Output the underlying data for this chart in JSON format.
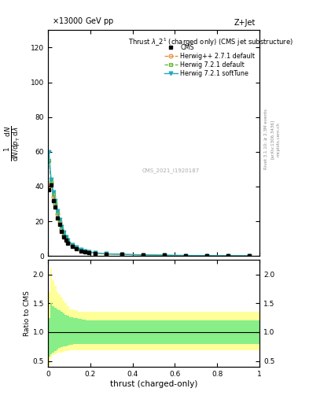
{
  "title_top_left": "13000 GeV pp",
  "title_top_right": "Z+Jet",
  "plot_title_line1": "Thrust λ_2¹ (charged only) (CMS jet substructure)",
  "cms_label": "CMS_2021_I1920187",
  "rivet_label": "Rivet 3.1.10; ≥ 2.3M events",
  "arxiv_label": "[arXiv:1306.3436]",
  "xlabel": "thrust (charged-only)",
  "ylim_main": [
    0,
    130
  ],
  "ylim_ratio": [
    0.4,
    2.25
  ],
  "yticks_main": [
    0,
    20,
    40,
    60,
    80,
    100,
    120
  ],
  "yticks_ratio": [
    0.5,
    1.0,
    1.5,
    2.0
  ],
  "xlim": [
    0,
    1
  ],
  "x_cms": [
    0.005,
    0.015,
    0.025,
    0.035,
    0.045,
    0.055,
    0.065,
    0.075,
    0.085,
    0.095,
    0.115,
    0.135,
    0.155,
    0.175,
    0.195,
    0.225,
    0.275,
    0.35,
    0.45,
    0.55,
    0.65,
    0.75,
    0.85,
    0.95
  ],
  "y_cms": [
    38.0,
    41.0,
    32.0,
    28.0,
    22.0,
    18.0,
    14.0,
    11.0,
    9.0,
    7.5,
    5.5,
    4.0,
    3.0,
    2.5,
    2.0,
    1.5,
    1.0,
    0.8,
    0.5,
    0.3,
    0.2,
    0.15,
    0.1,
    0.05
  ],
  "y_hw271_default": [
    40.0,
    42.0,
    34.0,
    30.0,
    24.0,
    19.5,
    15.5,
    12.0,
    10.0,
    8.0,
    6.0,
    4.5,
    3.3,
    2.7,
    2.1,
    1.6,
    1.1,
    0.85,
    0.55,
    0.35,
    0.22,
    0.16,
    0.11,
    0.06
  ],
  "y_hw721_default": [
    55.0,
    43.0,
    36.0,
    31.0,
    25.0,
    20.0,
    16.0,
    13.0,
    10.5,
    8.5,
    6.2,
    4.7,
    3.5,
    2.8,
    2.2,
    1.7,
    1.15,
    0.9,
    0.58,
    0.38,
    0.24,
    0.17,
    0.12,
    0.07
  ],
  "y_hw721_softtune": [
    60.0,
    44.0,
    37.0,
    32.0,
    26.0,
    21.0,
    17.0,
    13.5,
    11.0,
    9.0,
    6.5,
    5.0,
    3.7,
    3.0,
    2.3,
    1.75,
    1.2,
    0.95,
    0.6,
    0.4,
    0.25,
    0.18,
    0.13,
    0.08
  ],
  "ratio_yellow_upper": [
    1.7,
    2.1,
    1.9,
    1.8,
    1.7,
    1.65,
    1.6,
    1.55,
    1.5,
    1.45,
    1.4,
    1.38,
    1.35,
    1.35,
    1.35,
    1.35,
    1.35,
    1.35,
    1.35,
    1.35,
    1.35,
    1.35,
    1.35,
    1.35
  ],
  "ratio_yellow_lower": [
    0.42,
    0.55,
    0.6,
    0.62,
    0.63,
    0.64,
    0.65,
    0.66,
    0.67,
    0.67,
    0.68,
    0.68,
    0.68,
    0.68,
    0.68,
    0.68,
    0.68,
    0.68,
    0.68,
    0.68,
    0.68,
    0.68,
    0.68,
    0.68
  ],
  "ratio_green_upper": [
    1.25,
    1.5,
    1.45,
    1.42,
    1.4,
    1.38,
    1.35,
    1.32,
    1.3,
    1.28,
    1.26,
    1.25,
    1.23,
    1.22,
    1.21,
    1.2,
    1.2,
    1.2,
    1.2,
    1.2,
    1.2,
    1.2,
    1.2,
    1.2
  ],
  "ratio_green_lower": [
    0.58,
    0.62,
    0.65,
    0.67,
    0.7,
    0.72,
    0.74,
    0.75,
    0.76,
    0.77,
    0.78,
    0.79,
    0.8,
    0.8,
    0.8,
    0.8,
    0.8,
    0.8,
    0.8,
    0.8,
    0.8,
    0.8,
    0.8,
    0.8
  ],
  "color_cms": "#000000",
  "color_hw271": "#e8882a",
  "color_hw721_default": "#5db832",
  "color_hw721_softtune": "#22aabb",
  "color_yellow": "#ffff99",
  "color_green": "#88ee88",
  "legend_entries": [
    "CMS",
    "Herwig++ 2.7.1 default",
    "Herwig 7.2.1 default",
    "Herwig 7.2.1 softTune"
  ],
  "bin_edges": [
    0.0,
    0.01,
    0.02,
    0.03,
    0.04,
    0.05,
    0.06,
    0.07,
    0.08,
    0.09,
    0.1,
    0.12,
    0.14,
    0.16,
    0.18,
    0.2,
    0.25,
    0.3,
    0.4,
    0.5,
    0.6,
    0.7,
    0.8,
    0.9,
    1.0
  ]
}
